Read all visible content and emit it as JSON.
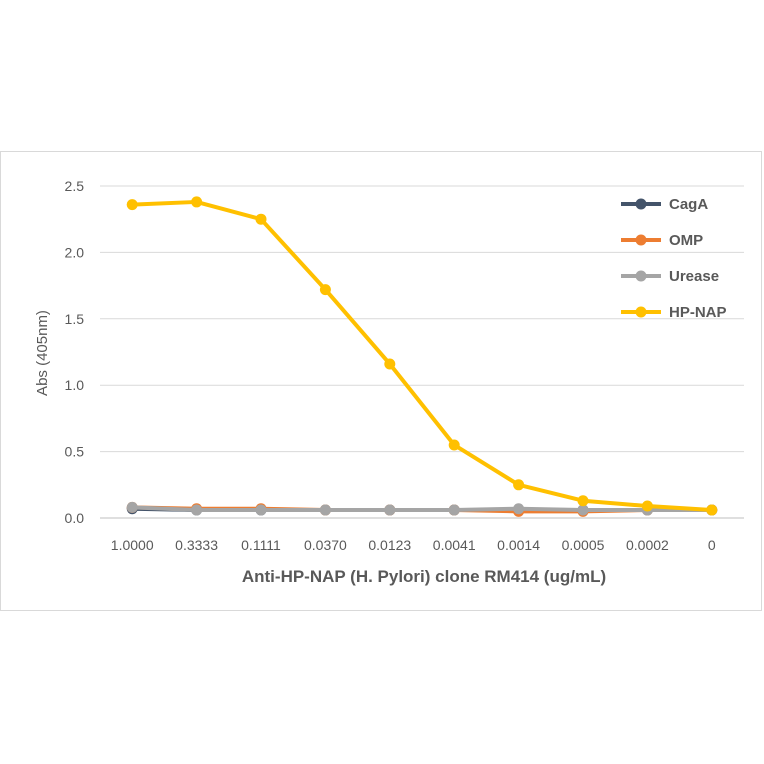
{
  "chart_data": {
    "type": "line",
    "title": "",
    "xlabel": "Anti-HP-NAP (H. Pylori) clone RM414 (ug/mL)",
    "ylabel": "Abs (405nm)",
    "categories": [
      "1.0000",
      "0.3333",
      "0.1111",
      "0.0370",
      "0.0123",
      "0.0041",
      "0.0014",
      "0.0005",
      "0.0002",
      "0"
    ],
    "ylim": [
      0,
      2.5
    ],
    "yticks": [
      "0.0",
      "0.5",
      "1.0",
      "1.5",
      "2.0",
      "2.5"
    ],
    "ytick_values": [
      0,
      0.5,
      1.0,
      1.5,
      2.0,
      2.5
    ],
    "grid": true,
    "legend_position": "top-right",
    "series": [
      {
        "name": "CagA",
        "color": "#44546A",
        "values": [
          0.07,
          0.06,
          0.06,
          0.06,
          0.06,
          0.06,
          0.06,
          0.06,
          0.06,
          0.06
        ]
      },
      {
        "name": "OMP",
        "color": "#ED7D31",
        "values": [
          0.08,
          0.07,
          0.07,
          0.06,
          0.06,
          0.06,
          0.05,
          0.05,
          0.06,
          0.06
        ]
      },
      {
        "name": "Urease",
        "color": "#A5A5A5",
        "values": [
          0.08,
          0.06,
          0.06,
          0.06,
          0.06,
          0.06,
          0.07,
          0.06,
          0.06,
          0.06
        ]
      },
      {
        "name": "HP-NAP",
        "color": "#FFC000",
        "values": [
          2.36,
          2.38,
          2.25,
          1.72,
          1.16,
          0.55,
          0.25,
          0.13,
          0.09,
          0.06
        ]
      }
    ]
  }
}
